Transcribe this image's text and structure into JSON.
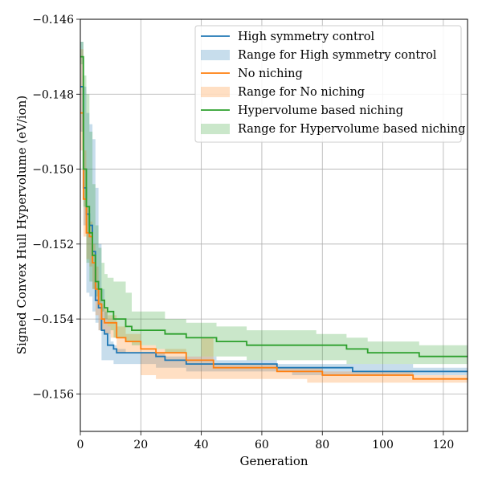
{
  "chart_data": {
    "type": "line",
    "xlabel": "Generation",
    "ylabel": "Signed Convex Hull Hypervolume (eV/ion)",
    "xlim": [
      0,
      128
    ],
    "ylim": [
      -0.157,
      -0.146
    ],
    "xticks": [
      0,
      20,
      40,
      60,
      80,
      100,
      120
    ],
    "xtick_labels": [
      "0",
      "20",
      "40",
      "60",
      "80",
      "100",
      "120"
    ],
    "yticks": [
      -0.156,
      -0.154,
      -0.152,
      -0.15,
      -0.148,
      -0.146
    ],
    "ytick_labels": [
      "−0.156",
      "−0.154",
      "−0.152",
      "−0.150",
      "−0.148",
      "−0.146"
    ],
    "grid": true,
    "legend_position": "top-right",
    "series": [
      {
        "name": "High symmetry control",
        "band_name": "Range for High symmetry control",
        "color": "#1f77b4",
        "x": [
          0,
          1,
          2,
          3,
          4,
          5,
          6,
          7,
          8,
          9,
          10,
          11,
          12,
          15,
          20,
          25,
          28,
          35,
          40,
          45,
          55,
          65,
          70,
          80,
          90,
          100,
          110,
          120,
          128
        ],
        "y": [
          -0.1478,
          -0.1505,
          -0.1512,
          -0.1515,
          -0.1522,
          -0.1535,
          -0.1537,
          -0.1543,
          -0.1544,
          -0.1547,
          -0.1547,
          -0.1548,
          -0.1549,
          -0.1549,
          -0.1549,
          -0.155,
          -0.1551,
          -0.1552,
          -0.1552,
          -0.1552,
          -0.1552,
          -0.1553,
          -0.1553,
          -0.1553,
          -0.1554,
          -0.1554,
          -0.1554,
          -0.1554,
          -0.1554
        ],
        "upper": [
          -0.1466,
          -0.1478,
          -0.1485,
          -0.1488,
          -0.1492,
          -0.1505,
          -0.152,
          -0.1532,
          -0.1538,
          -0.1542,
          -0.1546,
          -0.1547,
          -0.1548,
          -0.1549,
          -0.1549,
          -0.1549,
          -0.155,
          -0.155,
          -0.155,
          -0.1551,
          -0.1551,
          -0.1552,
          -0.1552,
          -0.1552,
          -0.1552,
          -0.1552,
          -0.1553,
          -0.1553,
          -0.1553
        ],
        "lower": [
          -0.149,
          -0.1515,
          -0.1533,
          -0.1534,
          -0.1538,
          -0.1541,
          -0.1543,
          -0.1551,
          -0.1551,
          -0.1551,
          -0.1551,
          -0.1552,
          -0.1552,
          -0.1552,
          -0.1552,
          -0.1553,
          -0.1553,
          -0.1554,
          -0.1554,
          -0.1554,
          -0.1554,
          -0.1554,
          -0.1555,
          -0.1555,
          -0.1555,
          -0.1555,
          -0.1555,
          -0.1555,
          -0.1555
        ]
      },
      {
        "name": "No niching",
        "band_name": "Range for No niching",
        "color": "#ff7f0e",
        "x": [
          0,
          1,
          2,
          3,
          4,
          5,
          6,
          7,
          8,
          9,
          10,
          12,
          15,
          20,
          25,
          30,
          35,
          40,
          44,
          50,
          60,
          65,
          75,
          80,
          90,
          100,
          110,
          120,
          128
        ],
        "y": [
          -0.1485,
          -0.1508,
          -0.1517,
          -0.1518,
          -0.1525,
          -0.1532,
          -0.1536,
          -0.154,
          -0.1541,
          -0.1541,
          -0.1541,
          -0.1545,
          -0.1546,
          -0.1548,
          -0.1549,
          -0.1549,
          -0.1551,
          -0.1551,
          -0.1553,
          -0.1553,
          -0.1553,
          -0.1554,
          -0.1554,
          -0.1555,
          -0.1555,
          -0.1555,
          -0.1556,
          -0.1556,
          -0.1556
        ],
        "upper": [
          -0.1468,
          -0.1495,
          -0.151,
          -0.1514,
          -0.152,
          -0.1526,
          -0.1532,
          -0.1536,
          -0.1537,
          -0.1539,
          -0.1539,
          -0.1542,
          -0.1544,
          -0.1547,
          -0.1548,
          -0.1548,
          -0.155,
          -0.1545,
          -0.1552,
          -0.1552,
          -0.1552,
          -0.1553,
          -0.1553,
          -0.1554,
          -0.1554,
          -0.1554,
          -0.1555,
          -0.1555,
          -0.1555
        ],
        "lower": [
          -0.1495,
          -0.1518,
          -0.1524,
          -0.1526,
          -0.1532,
          -0.1539,
          -0.1543,
          -0.1543,
          -0.1544,
          -0.1544,
          -0.1545,
          -0.1549,
          -0.1549,
          -0.1555,
          -0.1556,
          -0.1556,
          -0.1556,
          -0.1556,
          -0.1556,
          -0.1556,
          -0.1556,
          -0.1556,
          -0.1557,
          -0.1557,
          -0.1557,
          -0.1557,
          -0.1557,
          -0.1557,
          -0.1557
        ]
      },
      {
        "name": "Hypervolume based niching",
        "band_name": "Range for Hypervolume based niching",
        "color": "#2ca02c",
        "x": [
          0,
          1,
          2,
          3,
          4,
          5,
          6,
          7,
          8,
          9,
          10,
          11,
          13,
          15,
          17,
          20,
          25,
          28,
          35,
          45,
          55,
          65,
          78,
          88,
          92,
          95,
          105,
          112,
          128
        ],
        "y": [
          -0.147,
          -0.15,
          -0.151,
          -0.1517,
          -0.1523,
          -0.153,
          -0.1532,
          -0.1535,
          -0.1537,
          -0.1538,
          -0.1538,
          -0.154,
          -0.154,
          -0.1542,
          -0.1543,
          -0.1543,
          -0.1543,
          -0.1544,
          -0.1545,
          -0.1546,
          -0.1547,
          -0.1547,
          -0.1547,
          -0.1548,
          -0.1548,
          -0.1549,
          -0.1549,
          -0.155,
          -0.155
        ],
        "upper": [
          -0.1466,
          -0.1475,
          -0.148,
          -0.149,
          -0.1504,
          -0.1515,
          -0.1521,
          -0.1525,
          -0.1528,
          -0.1529,
          -0.1529,
          -0.153,
          -0.153,
          -0.1533,
          -0.1538,
          -0.1538,
          -0.1538,
          -0.154,
          -0.1541,
          -0.1542,
          -0.1543,
          -0.1543,
          -0.1544,
          -0.1545,
          -0.1545,
          -0.1546,
          -0.1546,
          -0.1547,
          -0.1547
        ],
        "lower": [
          -0.1472,
          -0.151,
          -0.1525,
          -0.153,
          -0.1532,
          -0.1534,
          -0.1536,
          -0.1538,
          -0.154,
          -0.1542,
          -0.1543,
          -0.1545,
          -0.1545,
          -0.1546,
          -0.1547,
          -0.1547,
          -0.1548,
          -0.1549,
          -0.155,
          -0.155,
          -0.1551,
          -0.1551,
          -0.1551,
          -0.1552,
          -0.1552,
          -0.1552,
          -0.1552,
          -0.1552,
          -0.1553
        ]
      }
    ]
  }
}
